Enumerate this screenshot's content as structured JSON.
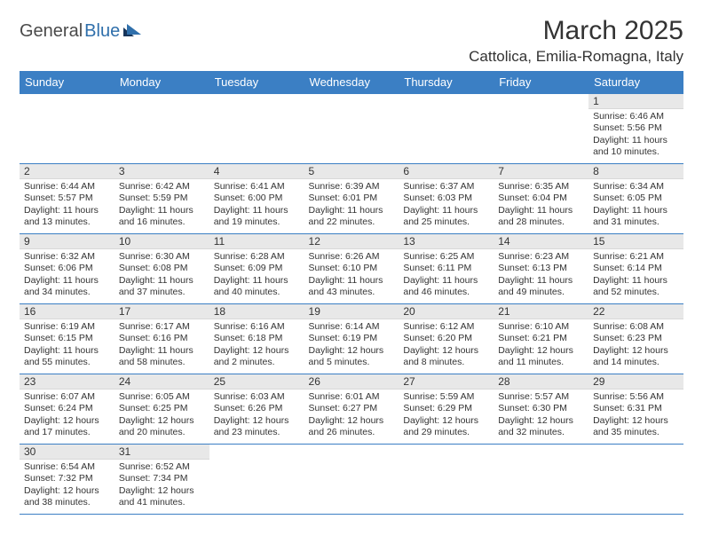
{
  "logo": {
    "part1": "General",
    "part2": "Blue"
  },
  "title": "March 2025",
  "location": "Cattolica, Emilia-Romagna, Italy",
  "colors": {
    "header_bg": "#3b7fc4",
    "header_text": "#ffffff",
    "daynum_bg": "#e8e8e8",
    "border": "#3b7fc4",
    "text": "#333333",
    "logo_gray": "#4a4a4a",
    "logo_blue": "#2f6fab"
  },
  "weekdays": [
    "Sunday",
    "Monday",
    "Tuesday",
    "Wednesday",
    "Thursday",
    "Friday",
    "Saturday"
  ],
  "weeks": [
    [
      null,
      null,
      null,
      null,
      null,
      null,
      {
        "n": "1",
        "sunrise": "6:46 AM",
        "sunset": "5:56 PM",
        "day_h": "11",
        "day_m": "10"
      }
    ],
    [
      {
        "n": "2",
        "sunrise": "6:44 AM",
        "sunset": "5:57 PM",
        "day_h": "11",
        "day_m": "13"
      },
      {
        "n": "3",
        "sunrise": "6:42 AM",
        "sunset": "5:59 PM",
        "day_h": "11",
        "day_m": "16"
      },
      {
        "n": "4",
        "sunrise": "6:41 AM",
        "sunset": "6:00 PM",
        "day_h": "11",
        "day_m": "19"
      },
      {
        "n": "5",
        "sunrise": "6:39 AM",
        "sunset": "6:01 PM",
        "day_h": "11",
        "day_m": "22"
      },
      {
        "n": "6",
        "sunrise": "6:37 AM",
        "sunset": "6:03 PM",
        "day_h": "11",
        "day_m": "25"
      },
      {
        "n": "7",
        "sunrise": "6:35 AM",
        "sunset": "6:04 PM",
        "day_h": "11",
        "day_m": "28"
      },
      {
        "n": "8",
        "sunrise": "6:34 AM",
        "sunset": "6:05 PM",
        "day_h": "11",
        "day_m": "31"
      }
    ],
    [
      {
        "n": "9",
        "sunrise": "6:32 AM",
        "sunset": "6:06 PM",
        "day_h": "11",
        "day_m": "34"
      },
      {
        "n": "10",
        "sunrise": "6:30 AM",
        "sunset": "6:08 PM",
        "day_h": "11",
        "day_m": "37"
      },
      {
        "n": "11",
        "sunrise": "6:28 AM",
        "sunset": "6:09 PM",
        "day_h": "11",
        "day_m": "40"
      },
      {
        "n": "12",
        "sunrise": "6:26 AM",
        "sunset": "6:10 PM",
        "day_h": "11",
        "day_m": "43"
      },
      {
        "n": "13",
        "sunrise": "6:25 AM",
        "sunset": "6:11 PM",
        "day_h": "11",
        "day_m": "46"
      },
      {
        "n": "14",
        "sunrise": "6:23 AM",
        "sunset": "6:13 PM",
        "day_h": "11",
        "day_m": "49"
      },
      {
        "n": "15",
        "sunrise": "6:21 AM",
        "sunset": "6:14 PM",
        "day_h": "11",
        "day_m": "52"
      }
    ],
    [
      {
        "n": "16",
        "sunrise": "6:19 AM",
        "sunset": "6:15 PM",
        "day_h": "11",
        "day_m": "55"
      },
      {
        "n": "17",
        "sunrise": "6:17 AM",
        "sunset": "6:16 PM",
        "day_h": "11",
        "day_m": "58"
      },
      {
        "n": "18",
        "sunrise": "6:16 AM",
        "sunset": "6:18 PM",
        "day_h": "12",
        "day_m": "2"
      },
      {
        "n": "19",
        "sunrise": "6:14 AM",
        "sunset": "6:19 PM",
        "day_h": "12",
        "day_m": "5"
      },
      {
        "n": "20",
        "sunrise": "6:12 AM",
        "sunset": "6:20 PM",
        "day_h": "12",
        "day_m": "8"
      },
      {
        "n": "21",
        "sunrise": "6:10 AM",
        "sunset": "6:21 PM",
        "day_h": "12",
        "day_m": "11"
      },
      {
        "n": "22",
        "sunrise": "6:08 AM",
        "sunset": "6:23 PM",
        "day_h": "12",
        "day_m": "14"
      }
    ],
    [
      {
        "n": "23",
        "sunrise": "6:07 AM",
        "sunset": "6:24 PM",
        "day_h": "12",
        "day_m": "17"
      },
      {
        "n": "24",
        "sunrise": "6:05 AM",
        "sunset": "6:25 PM",
        "day_h": "12",
        "day_m": "20"
      },
      {
        "n": "25",
        "sunrise": "6:03 AM",
        "sunset": "6:26 PM",
        "day_h": "12",
        "day_m": "23"
      },
      {
        "n": "26",
        "sunrise": "6:01 AM",
        "sunset": "6:27 PM",
        "day_h": "12",
        "day_m": "26"
      },
      {
        "n": "27",
        "sunrise": "5:59 AM",
        "sunset": "6:29 PM",
        "day_h": "12",
        "day_m": "29"
      },
      {
        "n": "28",
        "sunrise": "5:57 AM",
        "sunset": "6:30 PM",
        "day_h": "12",
        "day_m": "32"
      },
      {
        "n": "29",
        "sunrise": "5:56 AM",
        "sunset": "6:31 PM",
        "day_h": "12",
        "day_m": "35"
      }
    ],
    [
      {
        "n": "30",
        "sunrise": "6:54 AM",
        "sunset": "7:32 PM",
        "day_h": "12",
        "day_m": "38"
      },
      {
        "n": "31",
        "sunrise": "6:52 AM",
        "sunset": "7:34 PM",
        "day_h": "12",
        "day_m": "41"
      },
      null,
      null,
      null,
      null,
      null
    ]
  ]
}
